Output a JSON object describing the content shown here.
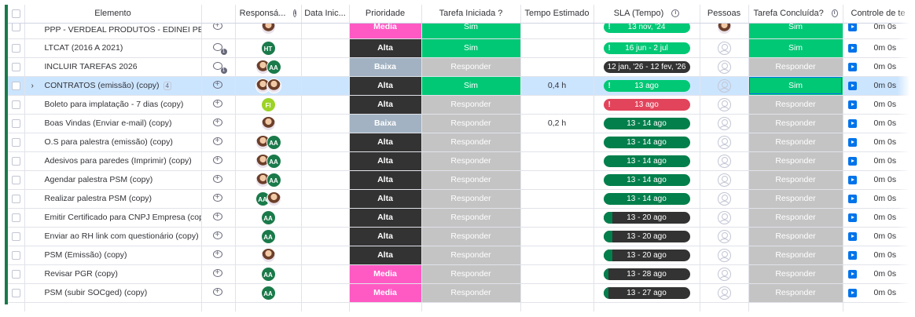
{
  "columns": {
    "elemento": "Elemento",
    "responsavel": "Responsá...",
    "data_inicio": "Data Inic...",
    "prioridade": "Prioridade",
    "tarefa_iniciada": "Tarefa Iniciada ?",
    "tempo_estimado": "Tempo Estimado",
    "sla": "SLA (Tempo)",
    "pessoas": "Pessoas",
    "tarefa_concluida": "Tarefa Concluída?",
    "controle": "Controle de te"
  },
  "colors": {
    "green": "#00c875",
    "dark_green": "#037f4c",
    "grey": "#c4c4c4",
    "alta": "#333333",
    "baixa": "#a2b2c2",
    "media": "#ff5ac4",
    "red": "#e2445c",
    "accent": "#0073ea"
  },
  "rows": [
    {
      "name": "PPP - VERDEAL PRODUTOS - EDINEI PEREI...",
      "prio": "Media",
      "ini": "Sim",
      "tempo": "",
      "sla": "13 nov, '24",
      "conc": "Sim",
      "time": "0m 0s"
    },
    {
      "name": "LTCAT (2016 A 2021)",
      "avatar": "HT",
      "prio": "Alta",
      "ini": "Sim",
      "tempo": "",
      "sla": "16 jun - 2 jul",
      "conc": "Sim",
      "time": "0m 0s"
    },
    {
      "name": "INCLUIR TAREFAS 2026",
      "avatar": "AA",
      "prio": "Baixa",
      "ini": "Responder",
      "tempo": "",
      "sla": "12 jan, '26 - 12 fev, '26",
      "conc": "Responder",
      "time": "0m 0s"
    },
    {
      "name": "CONTRATOS (emissão) (copy)",
      "subitems": "4",
      "prio": "Alta",
      "ini": "Sim",
      "tempo": "0,4 h",
      "sla": "13 ago",
      "conc": "Sim",
      "time": "0m 0s"
    },
    {
      "name": "Boleto para implatação - 7 dias (copy)",
      "avatar": "FI",
      "prio": "Alta",
      "ini": "Responder",
      "tempo": "",
      "sla": "13 ago",
      "conc": "Responder",
      "time": "0m 0s"
    },
    {
      "name": "Boas Vindas (Enviar e-mail) (copy)",
      "prio": "Baixa",
      "ini": "Responder",
      "tempo": "0,2 h",
      "sla": "13 - 14 ago",
      "conc": "Responder",
      "time": "0m 0s"
    },
    {
      "name": "O.S para palestra (emissão) (copy)",
      "avatar": "AA",
      "prio": "Alta",
      "ini": "Responder",
      "tempo": "",
      "sla": "13 - 14 ago",
      "conc": "Responder",
      "time": "0m 0s"
    },
    {
      "name": "Adesivos para paredes (Imprimir) (copy)",
      "avatar": "AA",
      "prio": "Alta",
      "ini": "Responder",
      "tempo": "",
      "sla": "13 - 14 ago",
      "conc": "Responder",
      "time": "0m 0s"
    },
    {
      "name": "Agendar palestra PSM (copy)",
      "avatar": "AA",
      "prio": "Alta",
      "ini": "Responder",
      "tempo": "",
      "sla": "13 - 14 ago",
      "conc": "Responder",
      "time": "0m 0s"
    },
    {
      "name": "Realizar palestra PSM (copy)",
      "avatar": "AA",
      "prio": "Alta",
      "ini": "Responder",
      "tempo": "",
      "sla": "13 - 14 ago",
      "conc": "Responder",
      "time": "0m 0s"
    },
    {
      "name": "Emitir Certificado para CNPJ Empresa (copy)",
      "avatar": "AA",
      "prio": "Alta",
      "ini": "Responder",
      "tempo": "",
      "sla": "13 - 20 ago",
      "conc": "Responder",
      "time": "0m 0s"
    },
    {
      "name": "Enviar ao RH link com questionário (copy)",
      "avatar": "AA",
      "prio": "Alta",
      "ini": "Responder",
      "tempo": "",
      "sla": "13 - 20 ago",
      "conc": "Responder",
      "time": "0m 0s"
    },
    {
      "name": "PSM (Emissão) (copy)",
      "prio": "Alta",
      "ini": "Responder",
      "tempo": "",
      "sla": "13 - 20 ago",
      "conc": "Responder",
      "time": "0m 0s"
    },
    {
      "name": "Revisar PGR (copy)",
      "avatar": "AA",
      "prio": "Media",
      "ini": "Responder",
      "tempo": "",
      "sla": "13 - 28 ago",
      "conc": "Responder",
      "time": "0m 0s"
    },
    {
      "name": "PSM (subir SOCged) (copy)",
      "avatar": "AA",
      "prio": "Media",
      "ini": "Responder",
      "tempo": "",
      "sla": "13 - 27 ago",
      "conc": "Responder",
      "time": "0m 0s"
    }
  ]
}
